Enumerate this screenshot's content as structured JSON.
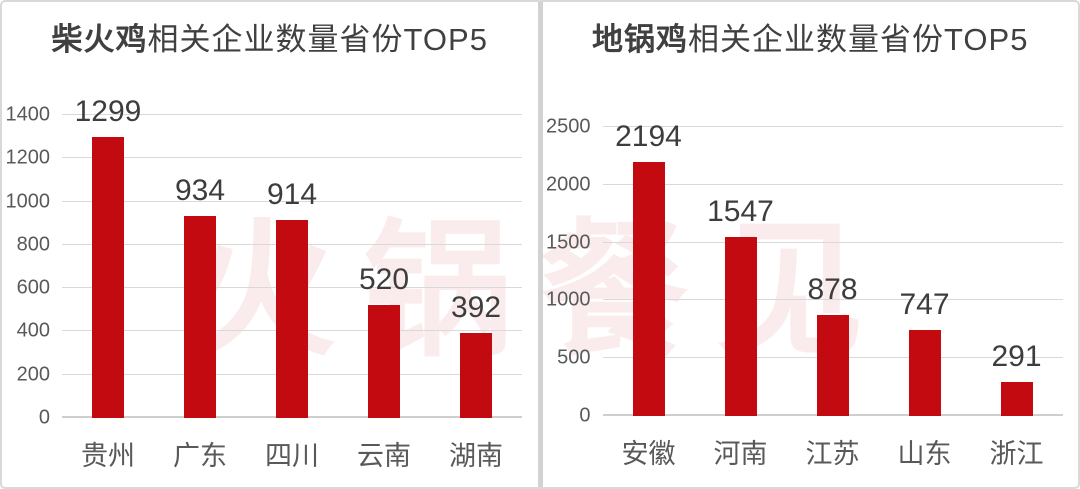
{
  "watermark": {
    "text": "火锅餐见"
  },
  "colors": {
    "bar": "#c20a10",
    "grid": "#d9d9d9",
    "data_label": "#3d3d3d",
    "axis_label": "#595959",
    "title": "#404040",
    "divider": "#d2d2d2",
    "border": "#d9d9d9"
  },
  "chart_data": [
    {
      "type": "bar",
      "title": "柴火鸡相关企业数量省份TOP5",
      "title_bold_prefix": "柴火鸡",
      "title_rest": "相关企业数量省份TOP5",
      "categories": [
        "贵州",
        "广东",
        "四川",
        "云南",
        "湖南"
      ],
      "values": [
        1299,
        934,
        914,
        520,
        392
      ],
      "ylim": [
        0,
        1400
      ],
      "yticks": [
        0,
        200,
        400,
        600,
        800,
        1000,
        1200,
        1400
      ],
      "grid": true,
      "legend": "none",
      "data_labels": true,
      "bar_color": "#c20a10"
    },
    {
      "type": "bar",
      "title": "地锅鸡相关企业数量省份TOP5",
      "title_bold_prefix": "地锅鸡",
      "title_rest": "相关企业数量省份TOP5",
      "categories": [
        "安徽",
        "河南",
        "江苏",
        "山东",
        "浙江"
      ],
      "values": [
        2194,
        1547,
        878,
        747,
        291
      ],
      "ylim": [
        0,
        2500
      ],
      "yticks": [
        0,
        500,
        1000,
        1500,
        2000,
        2500
      ],
      "grid": true,
      "legend": "none",
      "data_labels": true,
      "bar_color": "#c20a10"
    }
  ]
}
